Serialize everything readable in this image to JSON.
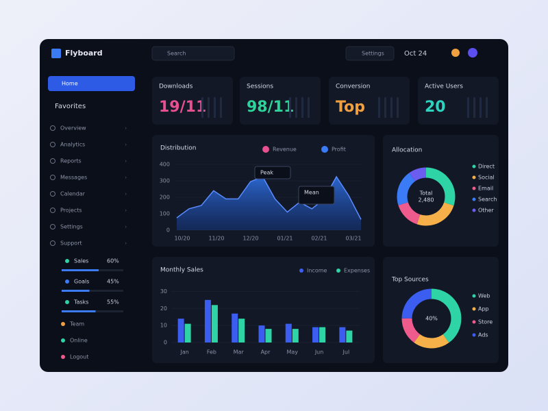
{
  "app": {
    "brand": "Flyboard",
    "search": "Search",
    "settings": "Settings",
    "date": "Oct 24"
  },
  "sidebar": {
    "active": "Home",
    "section": "Favorites",
    "items": [
      "Overview",
      "Analytics",
      "Reports",
      "Messages",
      "Calendar",
      "Projects",
      "Settings",
      "Support"
    ],
    "progress": [
      {
        "label": "Sales",
        "value": 60,
        "value_label": "60%"
      },
      {
        "label": "Goals",
        "value": 45,
        "value_label": "45%"
      },
      {
        "label": "Tasks",
        "value": 55,
        "value_label": "55%"
      }
    ],
    "footer": [
      "Team",
      "Online",
      "Logout"
    ]
  },
  "kpis": [
    {
      "title": "Downloads",
      "value": "19/11",
      "color": "#e8508f"
    },
    {
      "title": "Sessions",
      "value": "98/11",
      "color": "#2ed39a"
    },
    {
      "title": "Conversion",
      "value": "Top",
      "color": "#f0a040"
    },
    {
      "title": "Active Users",
      "value": "20",
      "color": "#2ed3c0"
    }
  ],
  "area_chart": {
    "title": "Distribution",
    "legend": [
      {
        "name": "Revenue",
        "color": "#e8508f"
      },
      {
        "name": "Profit",
        "color": "#3b7bf5"
      }
    ],
    "values": [
      75,
      130,
      150,
      240,
      190,
      190,
      295,
      325,
      190,
      110,
      170,
      130,
      190,
      325,
      210,
      65
    ],
    "ylim": [
      0,
      400
    ],
    "yticks": [
      0,
      100,
      200,
      300,
      400
    ],
    "xtick_labels": [
      "10/20",
      "11/20",
      "12/20",
      "01/21",
      "02/21",
      "03/21"
    ],
    "annotations": [
      "Peak",
      "Mean"
    ],
    "color": "#2f6fe0"
  },
  "donut1": {
    "title": "Allocation",
    "center": [
      "Total",
      "2,480"
    ],
    "segments": [
      {
        "name": "Direct",
        "value": 30,
        "color": "#2ed3a6"
      },
      {
        "name": "Social",
        "value": 25,
        "color": "#f5b04a"
      },
      {
        "name": "Email",
        "value": 15,
        "color": "#ef5b8c"
      },
      {
        "name": "Search",
        "value": 20,
        "color": "#3b7bf5"
      },
      {
        "name": "Other",
        "value": 10,
        "color": "#6a5df0"
      }
    ]
  },
  "bar_chart": {
    "title": "Monthly Sales",
    "categories": [
      "Jan",
      "Feb",
      "Mar",
      "Apr",
      "May",
      "Jun",
      "Jul"
    ],
    "series": [
      {
        "name": "Income",
        "color": "#3b5df0",
        "values": [
          14,
          25,
          17,
          10,
          11,
          9,
          9
        ]
      },
      {
        "name": "Expenses",
        "color": "#2ed3a6",
        "values": [
          11,
          22,
          14,
          8,
          8,
          9,
          7
        ]
      }
    ],
    "ylim": [
      0,
      35
    ],
    "yticks": [
      0,
      10,
      20,
      30
    ]
  },
  "donut2": {
    "title": "Top Sources",
    "center": [
      "40%"
    ],
    "segments": [
      {
        "name": "Web",
        "value": 40,
        "color": "#2ed3a6"
      },
      {
        "name": "App",
        "value": 20,
        "color": "#f5b04a"
      },
      {
        "name": "Store",
        "value": 15,
        "color": "#ef5b8c"
      },
      {
        "name": "Ads",
        "value": 25,
        "color": "#3b5df0"
      }
    ]
  }
}
